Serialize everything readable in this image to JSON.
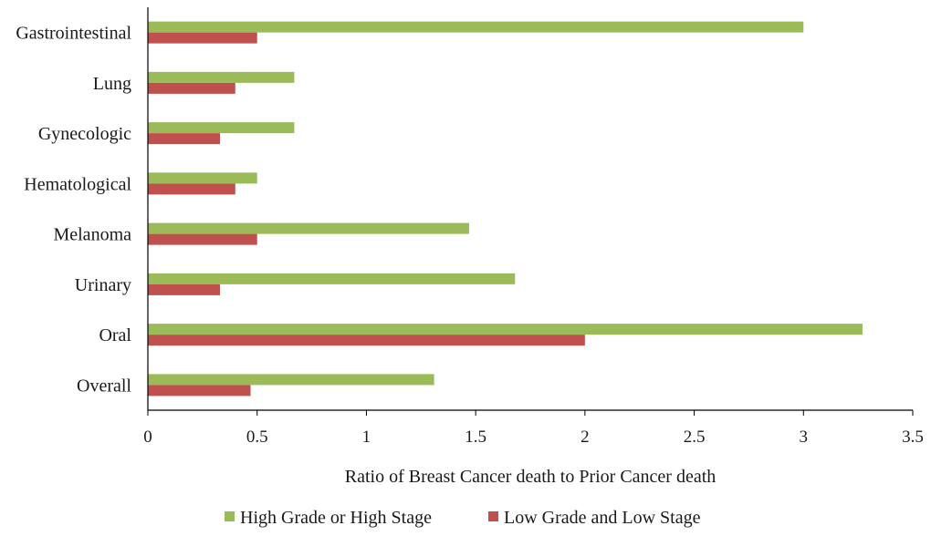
{
  "chart_data": {
    "type": "bar",
    "orientation": "horizontal",
    "title": "",
    "xlabel": "Ratio of Breast Cancer death to Prior Cancer death",
    "ylabel": "",
    "xlim": [
      0,
      3.5
    ],
    "xticks": [
      0,
      0.5,
      1,
      1.5,
      2,
      2.5,
      3,
      3.5
    ],
    "xtick_labels": [
      "0",
      "0.5",
      "1",
      "1.5",
      "2",
      "2.5",
      "3",
      "3.5"
    ],
    "grid": false,
    "legend_position": "bottom",
    "categories": [
      "Gastrointestinal",
      "Lung",
      "Gynecologic",
      "Hematological",
      "Melanoma",
      "Urinary",
      "Oral",
      "Overall"
    ],
    "series": [
      {
        "name": "High Grade or High Stage",
        "color": "#9BBB59",
        "values": [
          3.0,
          0.67,
          0.67,
          0.5,
          1.47,
          1.68,
          3.27,
          1.31
        ]
      },
      {
        "name": "Low Grade and Low Stage",
        "color": "#C0504D",
        "values": [
          0.5,
          0.4,
          0.33,
          0.4,
          0.5,
          0.33,
          2.0,
          0.47
        ]
      }
    ]
  }
}
